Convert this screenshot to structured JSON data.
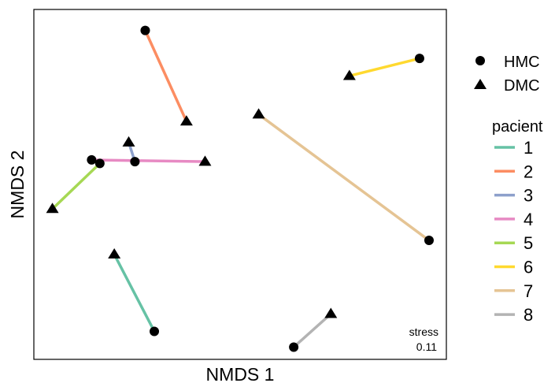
{
  "chart_data": {
    "type": "scatter",
    "xlabel": "NMDS 1",
    "ylabel": "NMDS 2",
    "xlim": [
      0,
      100
    ],
    "ylim": [
      0,
      100
    ],
    "grid": false,
    "annotation": {
      "line1": "stress",
      "line2": "0.11"
    },
    "shape_legend": {
      "placement": "top-right",
      "items": [
        {
          "label": "HMC",
          "shape": "circle"
        },
        {
          "label": "DMC",
          "shape": "triangle"
        }
      ]
    },
    "color_legend": {
      "title": "pacient",
      "placement": "right"
    },
    "series": [
      {
        "name": "1",
        "color": "#66C2A5",
        "HMC": [
          29.2,
          8.0
        ],
        "DMC": [
          19.5,
          30.0
        ]
      },
      {
        "name": "2",
        "color": "#FC8D62",
        "HMC": [
          27.0,
          94.0
        ],
        "DMC": [
          37.0,
          68.0
        ]
      },
      {
        "name": "3",
        "color": "#8DA0CB",
        "HMC": [
          24.5,
          56.5
        ],
        "DMC": [
          23.0,
          62.0
        ]
      },
      {
        "name": "4",
        "color": "#E78AC3",
        "HMC": [
          14.0,
          57.0
        ],
        "DMC": [
          41.5,
          56.5
        ]
      },
      {
        "name": "5",
        "color": "#A6D854",
        "HMC": [
          16.0,
          56.0
        ],
        "DMC": [
          4.5,
          43.0
        ]
      },
      {
        "name": "6",
        "color": "#FFD92F",
        "HMC": [
          93.5,
          86.0
        ],
        "DMC": [
          76.5,
          81.0
        ]
      },
      {
        "name": "7",
        "color": "#E5C494",
        "HMC": [
          95.8,
          34.0
        ],
        "DMC": [
          54.5,
          70.0
        ]
      },
      {
        "name": "8",
        "color": "#B3B3B3",
        "HMC": [
          63.0,
          3.5
        ],
        "DMC": [
          72.0,
          13.0
        ]
      }
    ]
  }
}
